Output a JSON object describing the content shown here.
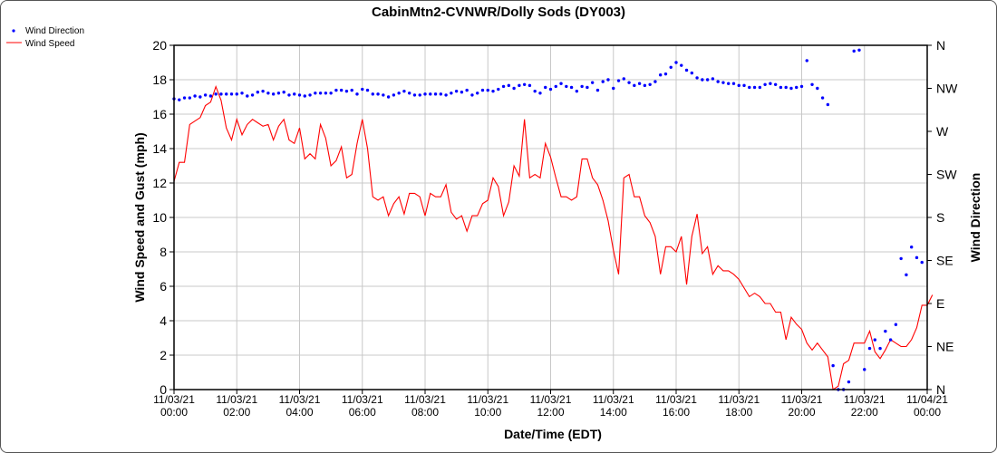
{
  "chart_data": {
    "type": "line",
    "title": "CabinMtn2-CVNWR/Dolly Sods (DY003)",
    "xlabel": "Date/Time (EDT)",
    "ylabel": "Wind Speed and Gust (mph)",
    "y2label": "Wind Direction",
    "ylim": [
      0,
      20
    ],
    "y2lim": [
      0,
      360
    ],
    "xlim_hours": [
      0,
      24
    ],
    "interval_minutes": 10,
    "grid": true,
    "legend_position": "top-left",
    "yticks": [
      0,
      2,
      4,
      6,
      8,
      10,
      12,
      14,
      16,
      18,
      20
    ],
    "y2ticks": [
      {
        "label": "N",
        "deg": 0
      },
      {
        "label": "NE",
        "deg": 45
      },
      {
        "label": "E",
        "deg": 90
      },
      {
        "label": "SE",
        "deg": 135
      },
      {
        "label": "S",
        "deg": 180
      },
      {
        "label": "SW",
        "deg": 225
      },
      {
        "label": "W",
        "deg": 270
      },
      {
        "label": "NW",
        "deg": 315
      },
      {
        "label": "N",
        "deg": 360
      }
    ],
    "xticks": [
      {
        "date": "11/03/21",
        "time": "00:00"
      },
      {
        "date": "11/03/21",
        "time": "02:00"
      },
      {
        "date": "11/03/21",
        "time": "04:00"
      },
      {
        "date": "11/03/21",
        "time": "06:00"
      },
      {
        "date": "11/03/21",
        "time": "08:00"
      },
      {
        "date": "11/03/21",
        "time": "10:00"
      },
      {
        "date": "11/03/21",
        "time": "12:00"
      },
      {
        "date": "11/03/21",
        "time": "14:00"
      },
      {
        "date": "11/03/21",
        "time": "16:00"
      },
      {
        "date": "11/03/21",
        "time": "18:00"
      },
      {
        "date": "11/03/21",
        "time": "20:00"
      },
      {
        "date": "11/03/21",
        "time": "22:00"
      },
      {
        "date": "11/04/21",
        "time": "00:00"
      }
    ],
    "series": [
      {
        "name": "Wind Direction",
        "axis": "right",
        "style": "points",
        "color": "#0000ff",
        "values": [
          304,
          303,
          305,
          305,
          307,
          306,
          308,
          307,
          309,
          309,
          309,
          309,
          309,
          310,
          307,
          308,
          311,
          312,
          310,
          309,
          310,
          311,
          308,
          309,
          308,
          307,
          308,
          310,
          310,
          310,
          310,
          313,
          313,
          312,
          313,
          309,
          314,
          313,
          309,
          309,
          308,
          306,
          308,
          310,
          312,
          310,
          308,
          308,
          309,
          309,
          309,
          309,
          308,
          310,
          312,
          311,
          313,
          308,
          310,
          313,
          313,
          312,
          314,
          317,
          318,
          315,
          318,
          319,
          318,
          312,
          310,
          316,
          314,
          317,
          320,
          317,
          316,
          312,
          317,
          316,
          321,
          313,
          322,
          324,
          315,
          323,
          325,
          321,
          318,
          320,
          318,
          319,
          322,
          329,
          330,
          337,
          342,
          339,
          334,
          331,
          326,
          324,
          324,
          325,
          322,
          321,
          320,
          320,
          318,
          318,
          316,
          316,
          316,
          319,
          320,
          319,
          316,
          316,
          315,
          316,
          317,
          344,
          319,
          315,
          305,
          298,
          25,
          0,
          0,
          8,
          354,
          355,
          21,
          43,
          52,
          43,
          61,
          52,
          68,
          137,
          120,
          149,
          138,
          133
        ]
      },
      {
        "name": "Wind Speed",
        "axis": "left",
        "style": "line",
        "color": "#ff0000",
        "values": [
          12.1,
          13.2,
          13.2,
          15.4,
          15.6,
          15.8,
          16.5,
          16.7,
          17.6,
          16.8,
          15.2,
          14.5,
          15.7,
          14.8,
          15.4,
          15.7,
          15.5,
          15.3,
          15.4,
          14.5,
          15.3,
          15.7,
          14.5,
          14.3,
          15.2,
          13.4,
          13.7,
          13.4,
          15.4,
          14.6,
          13.0,
          13.3,
          14.1,
          12.3,
          12.5,
          14.3,
          15.7,
          14.0,
          11.2,
          11.0,
          11.2,
          10.1,
          10.8,
          11.2,
          10.2,
          11.4,
          11.4,
          11.2,
          10.1,
          11.4,
          11.2,
          11.2,
          11.9,
          10.3,
          9.9,
          10.1,
          9.2,
          10.1,
          10.1,
          10.8,
          11.0,
          12.3,
          11.8,
          10.1,
          10.9,
          13.0,
          12.4,
          15.7,
          12.3,
          12.5,
          12.3,
          14.3,
          13.5,
          12.3,
          11.2,
          11.2,
          11.0,
          11.2,
          13.4,
          13.4,
          12.3,
          11.9,
          11.0,
          9.8,
          8.1,
          6.7,
          12.3,
          12.5,
          11.2,
          11.2,
          10.1,
          9.7,
          8.9,
          6.7,
          8.3,
          8.3,
          8.0,
          8.9,
          6.1,
          8.9,
          10.2,
          7.9,
          8.3,
          6.7,
          7.2,
          6.9,
          6.9,
          6.7,
          6.4,
          5.9,
          5.4,
          5.6,
          5.4,
          5.0,
          5.0,
          4.5,
          4.5,
          2.9,
          4.2,
          3.8,
          3.5,
          2.7,
          2.3,
          2.7,
          2.3,
          1.9,
          0.0,
          0.2,
          1.5,
          1.7,
          2.7,
          2.7,
          2.7,
          3.4,
          2.2,
          1.8,
          2.3,
          2.9,
          2.7,
          2.5,
          2.5,
          2.9,
          3.6,
          4.9,
          4.9,
          5.5
        ]
      }
    ]
  }
}
